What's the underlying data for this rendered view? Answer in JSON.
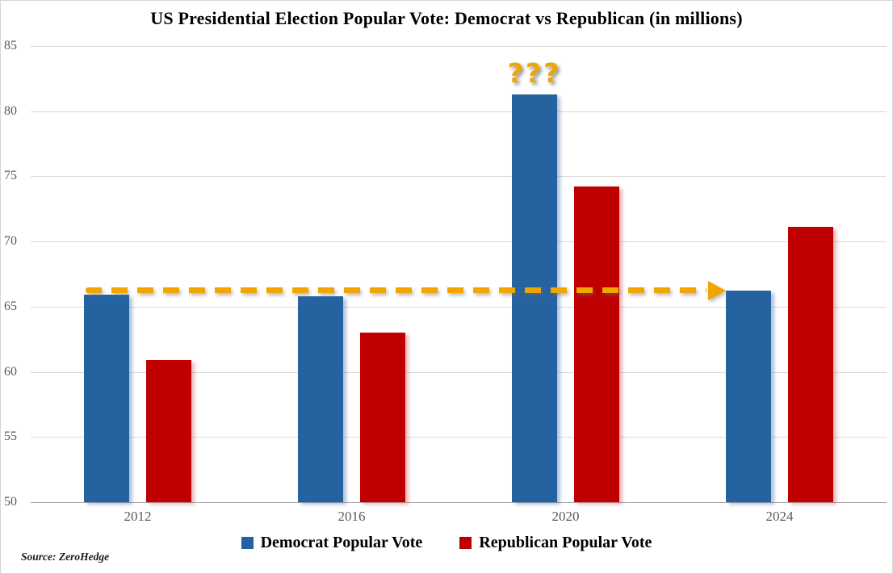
{
  "title": "US Presidential Election Popular Vote: Democrat vs Republican (in millions)",
  "source_note": "Source: ZeroHedge",
  "colors": {
    "democrat": "#2563A0",
    "republican": "#C00000",
    "accent_orange": "#F0A500",
    "gridline": "#DADADA",
    "axis_line": "#A8A8A8",
    "tick_label": "#595959"
  },
  "legend": {
    "items": [
      {
        "label": "Democrat Popular Vote",
        "color": "#2563A0"
      },
      {
        "label": "Republican Popular Vote",
        "color": "#C00000"
      }
    ]
  },
  "chart_data": {
    "type": "bar",
    "categories": [
      "2012",
      "2016",
      "2020",
      "2024"
    ],
    "series": [
      {
        "name": "Democrat Popular Vote",
        "color": "#2563A0",
        "values": [
          65.9,
          65.8,
          81.3,
          66.2
        ]
      },
      {
        "name": "Republican Popular Vote",
        "color": "#C00000",
        "values": [
          60.9,
          63.0,
          74.2,
          71.1
        ]
      }
    ],
    "title": "US Presidential Election Popular Vote: Democrat vs Republican (in millions)",
    "xlabel": "",
    "ylabel": "",
    "ylim": [
      50,
      85
    ],
    "ytick_step": 5,
    "grid": true,
    "legend_position": "bottom",
    "annotations": [
      {
        "type": "text",
        "text": "???",
        "category": "2020",
        "series": "Democrat Popular Vote",
        "position": "above-bar",
        "color": "#F0A500"
      },
      {
        "type": "dashed-arrow",
        "y": 66.2,
        "from_category": "2012",
        "to_category": "2024",
        "color": "#F0A500",
        "meaning": "Democrat vote roughly flat ~66M in 2012, 2016 and 2024 vs 81.3M spike in 2020"
      }
    ]
  }
}
